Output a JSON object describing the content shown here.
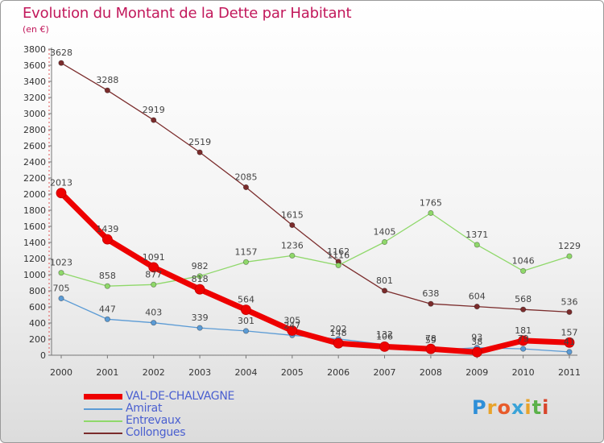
{
  "header": {
    "title": "Evolution du Montant de la Dette par Habitant",
    "subtitle": "(en €)"
  },
  "logo": {
    "text": "Proxiti"
  },
  "chart_data": {
    "type": "line",
    "title": "Evolution du Montant de la Dette par Habitant",
    "subtitle": "(en €)",
    "xlabel": "",
    "ylabel": "",
    "x": [
      "2000",
      "2001",
      "2002",
      "2003",
      "2004",
      "2005",
      "2006",
      "2007",
      "2008",
      "2009",
      "2010",
      "2011"
    ],
    "ylim": [
      0,
      3800
    ],
    "yticks": [
      0,
      200,
      400,
      600,
      800,
      1000,
      1200,
      1400,
      1600,
      1800,
      2000,
      2200,
      2400,
      2600,
      2800,
      3000,
      3200,
      3400,
      3600,
      3800
    ],
    "grid": false,
    "legend_position": "bottom-left",
    "series": [
      {
        "name": "VAL-DE-CHALVAGNE",
        "color": "#ee0000",
        "values": [
          2013,
          1439,
          1091,
          818,
          564,
          305,
          148,
          106,
          78,
          38,
          181,
          157
        ]
      },
      {
        "name": "Amirat",
        "color": "#5b9bd5",
        "values": [
          705,
          447,
          403,
          339,
          301,
          247,
          202,
          132,
          59,
          93,
          79,
          41
        ]
      },
      {
        "name": "Entrevaux",
        "color": "#8fd86a",
        "values": [
          1023,
          858,
          877,
          982,
          1157,
          1236,
          1116,
          1405,
          1765,
          1371,
          1046,
          1229
        ]
      },
      {
        "name": "Collongues",
        "color": "#7b2c2c",
        "values": [
          3628,
          3288,
          2919,
          2519,
          2085,
          1615,
          1162,
          801,
          638,
          604,
          568,
          536
        ]
      }
    ]
  }
}
